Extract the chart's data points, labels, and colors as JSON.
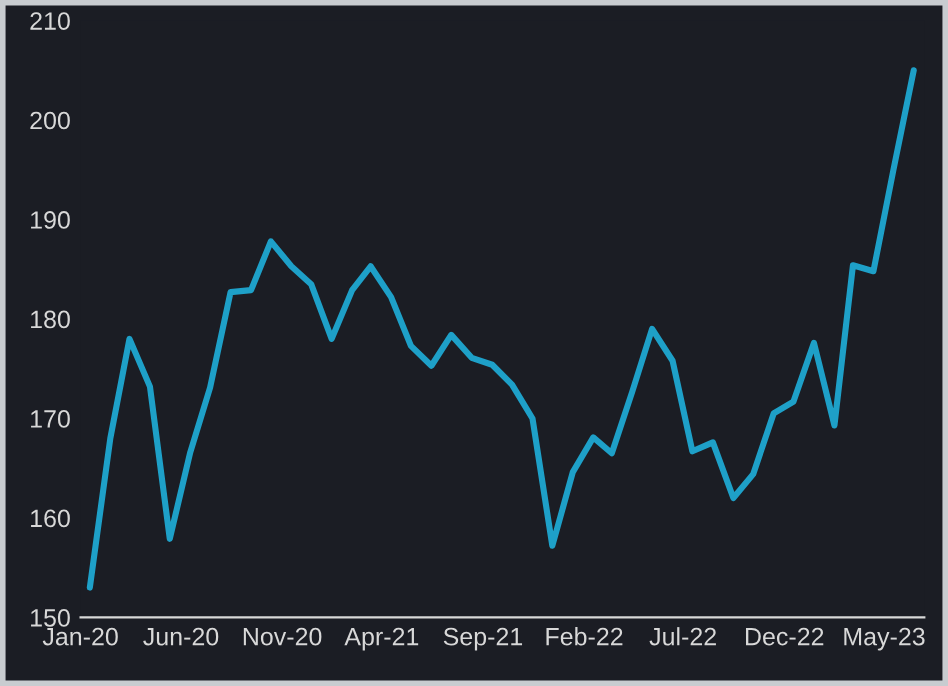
{
  "chart_data": {
    "type": "line",
    "x": [
      "2020-01-15",
      "2020-02-15",
      "2020-03-15",
      "2020-04-15",
      "2020-05-15",
      "2020-06-15",
      "2020-07-15",
      "2020-08-15",
      "2020-09-15",
      "2020-10-15",
      "2020-11-15",
      "2020-12-15",
      "2021-01-15",
      "2021-02-15",
      "2021-03-15",
      "2021-04-15",
      "2021-05-15",
      "2021-06-15",
      "2021-07-15",
      "2021-08-15",
      "2021-09-15",
      "2021-10-15",
      "2021-11-15",
      "2021-12-15",
      "2022-01-15",
      "2022-02-15",
      "2022-03-15",
      "2022-04-15",
      "2022-05-15",
      "2022-06-15",
      "2022-07-15",
      "2022-08-15",
      "2022-09-15",
      "2022-10-15",
      "2022-11-15",
      "2022-12-15",
      "2023-01-15",
      "2023-02-15",
      "2023-03-15",
      "2023-04-15",
      "2023-05-15",
      "2023-06-15"
    ],
    "series": [
      {
        "color": "#1ea0c8",
        "values": [
          153.0,
          168.0,
          178.0,
          173.2,
          157.9,
          166.6,
          173.1,
          182.7,
          182.9,
          187.8,
          185.3,
          183.5,
          178.0,
          182.9,
          185.3,
          182.2,
          177.3,
          175.3,
          178.4,
          176.1,
          175.4,
          173.4,
          170.0,
          157.2,
          164.6,
          168.1,
          166.5,
          172.7,
          179.0,
          175.8,
          166.7,
          167.6,
          162.0,
          164.4,
          170.5,
          171.7,
          177.6,
          169.3,
          185.4,
          184.8,
          194.9,
          205.0
        ]
      }
    ],
    "xlim": [
      "2020-01-01",
      "2023-07-01"
    ],
    "xticks": [
      {
        "value": "2020-01-01",
        "label": "Jan-20"
      },
      {
        "value": "2020-06-01",
        "label": "Jun-20"
      },
      {
        "value": "2020-11-01",
        "label": "Nov-20"
      },
      {
        "value": "2021-04-01",
        "label": "Apr-21"
      },
      {
        "value": "2021-09-01",
        "label": "Sep-21"
      },
      {
        "value": "2022-02-01",
        "label": "Feb-22"
      },
      {
        "value": "2022-07-01",
        "label": "Jul-22"
      },
      {
        "value": "2022-12-01",
        "label": "Dec-22"
      },
      {
        "value": "2023-05-01",
        "label": "May-23"
      }
    ],
    "ylim": [
      150,
      210
    ],
    "yticks": [
      150,
      160,
      170,
      180,
      190,
      200,
      210
    ],
    "grid": false,
    "legend": false,
    "marker": "none",
    "line_style": "solid"
  }
}
